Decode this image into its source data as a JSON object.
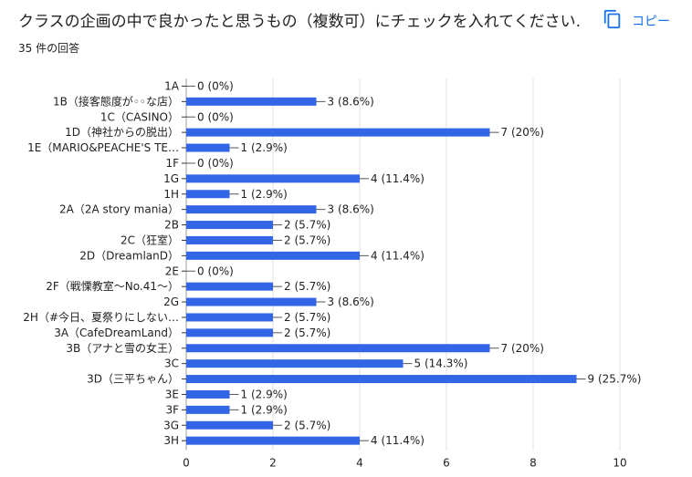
{
  "header": {
    "question": "クラスの企画の中で良かったと思うもの（複数可）にチェックを入れてください.",
    "response_count": "35 件の回答",
    "copy_label": "コピー",
    "copy_icon": "copy-icon"
  },
  "colors": {
    "bar": "#3366e6",
    "accent": "#1a73e8",
    "grid": "#e0e0e0"
  },
  "chart_data": {
    "type": "bar",
    "orientation": "horizontal",
    "categories": [
      "1A",
      "1B（接客態度が◦◦な店）",
      "1C（CASINO）",
      "1D（神社からの脱出）",
      "1E（MARIO&PEACHE'S TE…",
      "1F",
      "1G",
      "1H",
      "2A（2A story mania）",
      "2B",
      "2C（狂室）",
      "2D（DreamlanD）",
      "2E",
      "2F（戦慄教室～No.41～）",
      "2G",
      "2H（#今日、夏祭りにしない…",
      "3A（CafeDreamLand）",
      "3B（アナと雪の女王）",
      "3C",
      "3D（三平ちゃん）",
      "3E",
      "3F",
      "3G",
      "3H"
    ],
    "values": [
      0,
      3,
      0,
      7,
      1,
      0,
      4,
      1,
      3,
      2,
      2,
      4,
      0,
      2,
      3,
      2,
      2,
      7,
      5,
      9,
      1,
      1,
      2,
      4
    ],
    "value_labels": [
      "0 (0%)",
      "3 (8.6%)",
      "0 (0%)",
      "7 (20%)",
      "1 (2.9%)",
      "0 (0%)",
      "4 (11.4%)",
      "1 (2.9%)",
      "3 (8.6%)",
      "2 (5.7%)",
      "2 (5.7%)",
      "4 (11.4%)",
      "0 (0%)",
      "2 (5.7%)",
      "3 (8.6%)",
      "2 (5.7%)",
      "2 (5.7%)",
      "7 (20%)",
      "5 (14.3%)",
      "9 (25.7%)",
      "1 (2.9%)",
      "1 (2.9%)",
      "2 (5.7%)",
      "4 (11.4%)"
    ],
    "xlim": [
      0,
      10
    ],
    "xticks": [
      "0",
      "2",
      "4",
      "6",
      "8",
      "10"
    ],
    "title": "",
    "xlabel": "",
    "ylabel": ""
  }
}
